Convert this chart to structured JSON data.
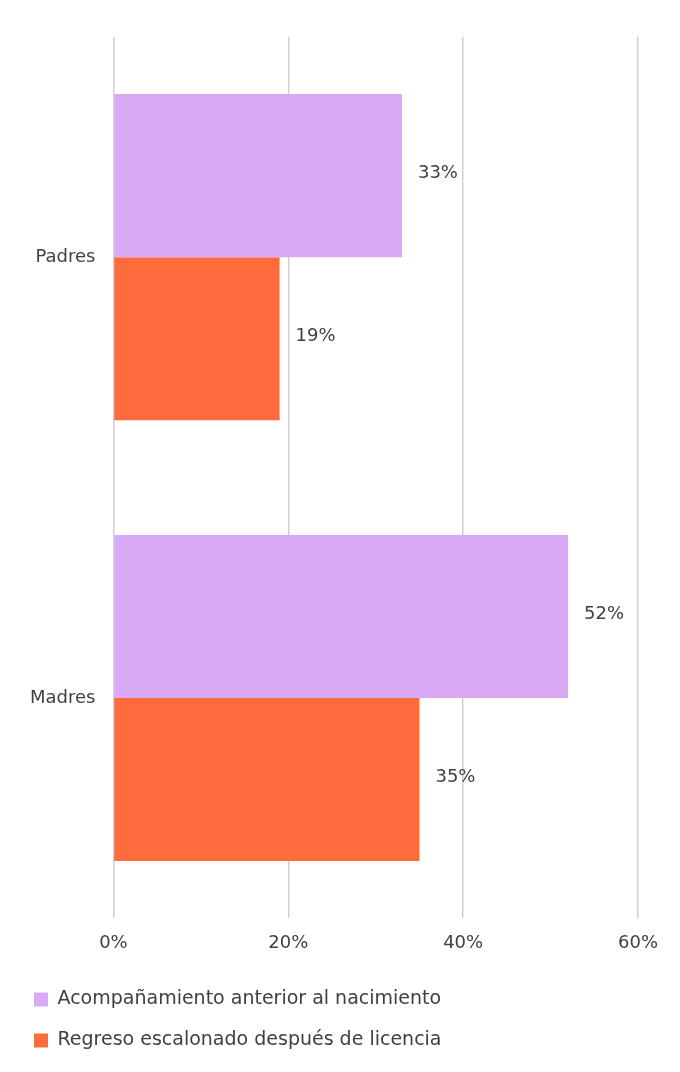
{
  "chart_data": {
    "type": "bar",
    "orientation": "horizontal",
    "categories": [
      "Padres",
      "Madres"
    ],
    "series": [
      {
        "name": "Acompañamiento anterior al nacimiento",
        "color": "#d9a9f5",
        "values": [
          33,
          52
        ],
        "value_labels": [
          "33%",
          "52%"
        ]
      },
      {
        "name": "Regreso escalonado después de licencia",
        "color": "#ff6b3d",
        "values": [
          19,
          35
        ],
        "value_labels": [
          "19%",
          "35%"
        ]
      }
    ],
    "xlim": [
      0,
      60
    ],
    "xticks": [
      {
        "value": 0,
        "label": "0%"
      },
      {
        "value": 20,
        "label": "20%"
      },
      {
        "value": 40,
        "label": "40%"
      },
      {
        "value": 60,
        "label": "60%"
      }
    ],
    "grid": "x",
    "legend": "bottom"
  }
}
